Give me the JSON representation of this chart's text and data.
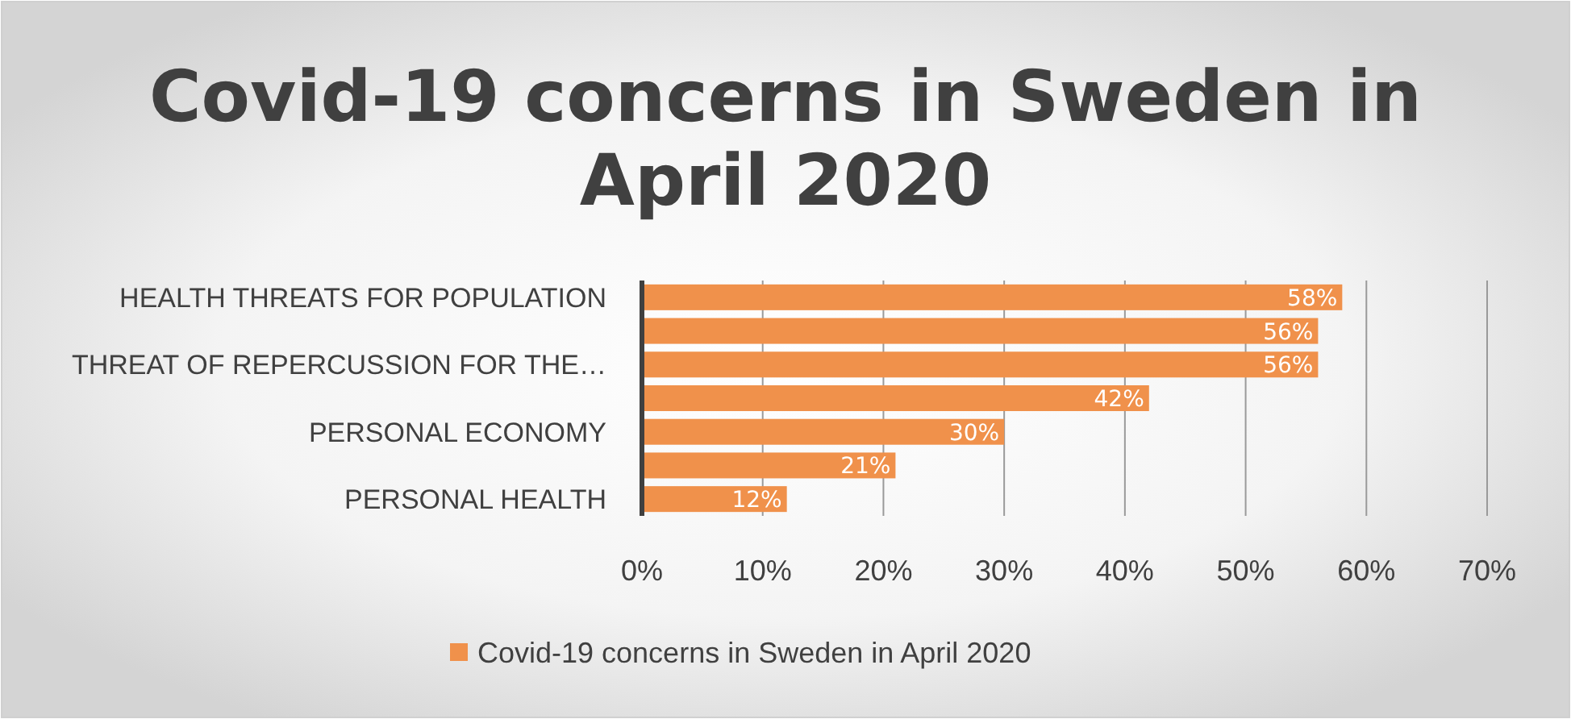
{
  "chart_data": {
    "type": "bar",
    "orientation": "horizontal",
    "title": "Covid-19 concerns in Sweden in April 2020",
    "categories": [
      "HEALTH THREATS FOR POPULATION",
      null,
      "THREAT OF REPERCUSSION FOR THE…",
      null,
      "PERSONAL ECONOMY",
      null,
      "PERSONAL HEALTH"
    ],
    "series": [
      {
        "name": "Covid-19 concerns in Sweden in April 2020",
        "color": "#f0914b",
        "values": [
          58,
          56,
          56,
          42,
          30,
          21,
          12
        ],
        "value_labels": [
          "58%",
          "56%",
          "56%",
          "42%",
          "30%",
          "21%",
          "12%"
        ]
      }
    ],
    "xlim": [
      0,
      70
    ],
    "xticks": [
      {
        "value": 0,
        "label": "0%"
      },
      {
        "value": 10,
        "label": "10%"
      },
      {
        "value": 20,
        "label": "20%"
      },
      {
        "value": 30,
        "label": "30%"
      },
      {
        "value": 40,
        "label": "40%"
      },
      {
        "value": 50,
        "label": "50%"
      },
      {
        "value": 60,
        "label": "60%"
      },
      {
        "value": 70,
        "label": "70%"
      }
    ],
    "grid": "x",
    "legend": "bottom"
  }
}
